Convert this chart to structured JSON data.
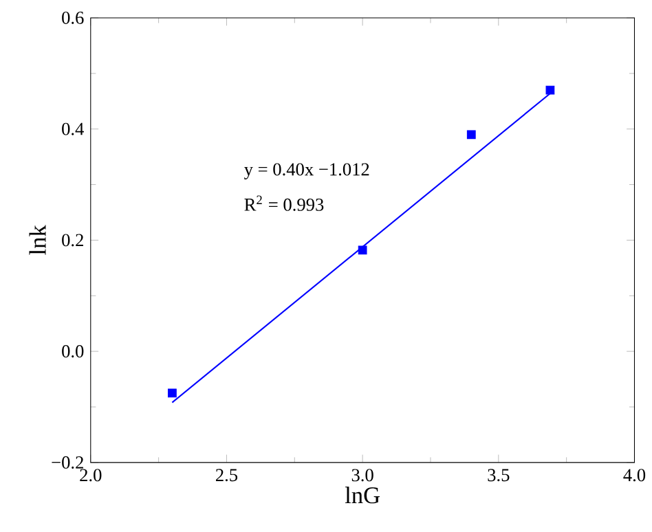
{
  "chart_data": {
    "type": "scatter",
    "xlabel": "lnG",
    "ylabel": "lnk",
    "xlim": [
      2.0,
      4.0
    ],
    "ylim": [
      -0.2,
      0.6
    ],
    "xticks": [
      {
        "value": 2.0,
        "label": "2.0"
      },
      {
        "value": 2.5,
        "label": "2.5"
      },
      {
        "value": 3.0,
        "label": "3.0"
      },
      {
        "value": 3.5,
        "label": "3.5"
      },
      {
        "value": 4.0,
        "label": "4.0"
      }
    ],
    "yticks": [
      {
        "value": -0.2,
        "label": "−0.2"
      },
      {
        "value": 0.0,
        "label": "0.0"
      },
      {
        "value": 0.2,
        "label": "0.2"
      },
      {
        "value": 0.4,
        "label": "0.4"
      },
      {
        "value": 0.6,
        "label": "0.6"
      }
    ],
    "series": [
      {
        "color": "#0000ff",
        "marker": "square",
        "x": [
          2.3,
          3.0,
          3.4,
          3.69
        ],
        "values": [
          -0.075,
          0.182,
          0.39,
          0.47
        ]
      },
      {
        "type": "line",
        "color": "#0000ff",
        "line_style": "solid",
        "x": [
          2.3,
          3.7
        ],
        "values": [
          -0.092,
          0.468
        ]
      }
    ],
    "annotations": [
      "y = 0.40x −1.012",
      "R$^{2}$ = 0.993"
    ]
  }
}
